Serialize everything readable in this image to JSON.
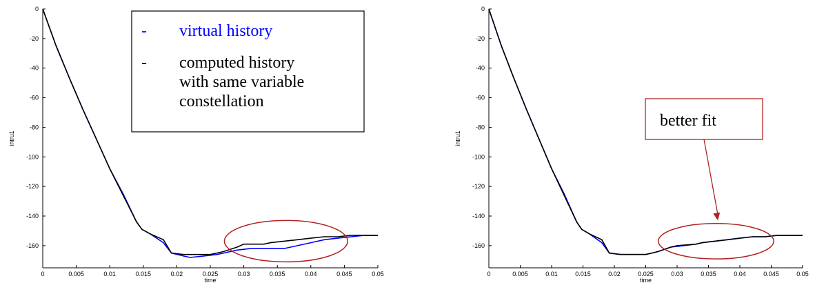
{
  "chart_data": [
    {
      "type": "line",
      "xlabel": "time",
      "ylabel": "intru1",
      "xlim": [
        0,
        0.05
      ],
      "ylim": [
        -175,
        0
      ],
      "x_ticks": [
        "0",
        "0.005",
        "0.01",
        "0.015",
        "0.02",
        "0.025",
        "0.03",
        "0.035",
        "0.04",
        "0.045",
        "0.05"
      ],
      "y_ticks": [
        "0",
        "-20",
        "-40",
        "-60",
        "-80",
        "-100",
        "-120",
        "-140",
        "-160"
      ],
      "legend": {
        "position": "top-center",
        "entries": [
          {
            "marker": "-",
            "label": "virtual history",
            "color": "#0000ff"
          },
          {
            "marker": "-",
            "label": "computed history with same variable constellation",
            "lines": [
              "computed history",
              "with same variable",
              "constellation"
            ],
            "color": "#000000"
          }
        ]
      },
      "series": [
        {
          "color": "#0000ff",
          "points": [
            [
              0,
              0
            ],
            [
              0.002,
              -25
            ],
            [
              0.004,
              -47
            ],
            [
              0.006,
              -68
            ],
            [
              0.008,
              -88
            ],
            [
              0.01,
              -108
            ],
            [
              0.012,
              -125
            ],
            [
              0.014,
              -144
            ],
            [
              0.0148,
              -149
            ],
            [
              0.016,
              -152
            ],
            [
              0.018,
              -158
            ],
            [
              0.0192,
              -165
            ],
            [
              0.021,
              -167
            ],
            [
              0.022,
              -168
            ],
            [
              0.024,
              -167
            ],
            [
              0.026,
              -166
            ],
            [
              0.027,
              -165
            ],
            [
              0.029,
              -163
            ],
            [
              0.031,
              -162
            ],
            [
              0.034,
              -162
            ],
            [
              0.036,
              -162
            ],
            [
              0.038,
              -160
            ],
            [
              0.04,
              -158
            ],
            [
              0.042,
              -156
            ],
            [
              0.044,
              -155
            ],
            [
              0.046,
              -154
            ],
            [
              0.048,
              -153
            ],
            [
              0.05,
              -153
            ]
          ]
        },
        {
          "color": "#000000",
          "points": [
            [
              0,
              0
            ],
            [
              0.002,
              -25
            ],
            [
              0.004,
              -47
            ],
            [
              0.006,
              -68
            ],
            [
              0.008,
              -88
            ],
            [
              0.01,
              -108
            ],
            [
              0.012,
              -126
            ],
            [
              0.014,
              -144
            ],
            [
              0.0148,
              -149
            ],
            [
              0.016,
              -152
            ],
            [
              0.018,
              -156
            ],
            [
              0.0192,
              -165
            ],
            [
              0.021,
              -166
            ],
            [
              0.023,
              -166
            ],
            [
              0.025,
              -166
            ],
            [
              0.026,
              -165
            ],
            [
              0.027,
              -164
            ],
            [
              0.029,
              -161
            ],
            [
              0.03,
              -159
            ],
            [
              0.033,
              -159
            ],
            [
              0.034,
              -158
            ],
            [
              0.036,
              -157
            ],
            [
              0.038,
              -156
            ],
            [
              0.04,
              -155
            ],
            [
              0.042,
              -154
            ],
            [
              0.044,
              -154
            ],
            [
              0.046,
              -153
            ],
            [
              0.048,
              -153
            ],
            [
              0.05,
              -153
            ]
          ]
        }
      ],
      "highlight": {
        "shape": "ellipse",
        "color": "#b22222",
        "center": [
          0.0363,
          -157
        ],
        "rx": 0.0092,
        "ry": 14
      }
    },
    {
      "type": "line",
      "xlabel": "time",
      "ylabel": "intru1",
      "xlim": [
        0,
        0.05
      ],
      "ylim": [
        -175,
        0
      ],
      "x_ticks": [
        "0",
        "0.005",
        "0.01",
        "0.015",
        "0.02",
        "0.025",
        "0.03",
        "0.035",
        "0.04",
        "0.045",
        "0.05"
      ],
      "y_ticks": [
        "0",
        "-20",
        "-40",
        "-60",
        "-80",
        "-100",
        "-120",
        "-140",
        "-160"
      ],
      "annotation": {
        "text": "better fit",
        "color": "#b22222",
        "arrow_to": [
          0.0365,
          -143
        ]
      },
      "series": [
        {
          "color": "#0000ff",
          "points": [
            [
              0,
              0
            ],
            [
              0.002,
              -25
            ],
            [
              0.004,
              -47
            ],
            [
              0.006,
              -68
            ],
            [
              0.008,
              -88
            ],
            [
              0.01,
              -108
            ],
            [
              0.012,
              -125
            ],
            [
              0.014,
              -144
            ],
            [
              0.0148,
              -149
            ],
            [
              0.016,
              -152
            ],
            [
              0.018,
              -158
            ],
            [
              0.0192,
              -165
            ],
            [
              0.021,
              -166
            ],
            [
              0.023,
              -166
            ],
            [
              0.025,
              -166
            ],
            [
              0.026,
              -165
            ],
            [
              0.027,
              -164
            ],
            [
              0.029,
              -161
            ],
            [
              0.031,
              -160
            ],
            [
              0.033,
              -159
            ],
            [
              0.034,
              -158
            ],
            [
              0.036,
              -157
            ],
            [
              0.038,
              -156
            ],
            [
              0.04,
              -155
            ],
            [
              0.042,
              -154
            ],
            [
              0.044,
              -154
            ],
            [
              0.046,
              -153
            ],
            [
              0.048,
              -153
            ],
            [
              0.05,
              -153
            ]
          ]
        },
        {
          "color": "#000000",
          "points": [
            [
              0,
              0
            ],
            [
              0.002,
              -25
            ],
            [
              0.004,
              -47
            ],
            [
              0.006,
              -68
            ],
            [
              0.008,
              -88
            ],
            [
              0.01,
              -108
            ],
            [
              0.012,
              -126
            ],
            [
              0.014,
              -144
            ],
            [
              0.0148,
              -149
            ],
            [
              0.016,
              -152
            ],
            [
              0.018,
              -156
            ],
            [
              0.0192,
              -165
            ],
            [
              0.021,
              -166
            ],
            [
              0.023,
              -166
            ],
            [
              0.025,
              -166
            ],
            [
              0.026,
              -165
            ],
            [
              0.027,
              -164
            ],
            [
              0.029,
              -161
            ],
            [
              0.03,
              -160
            ],
            [
              0.033,
              -159
            ],
            [
              0.034,
              -158
            ],
            [
              0.036,
              -157
            ],
            [
              0.038,
              -156
            ],
            [
              0.04,
              -155
            ],
            [
              0.042,
              -154
            ],
            [
              0.044,
              -154
            ],
            [
              0.046,
              -153
            ],
            [
              0.048,
              -153
            ],
            [
              0.05,
              -153
            ]
          ]
        }
      ],
      "highlight": {
        "shape": "ellipse",
        "color": "#b22222",
        "center": [
          0.0362,
          -157
        ],
        "rx": 0.0092,
        "ry": 12
      }
    }
  ]
}
